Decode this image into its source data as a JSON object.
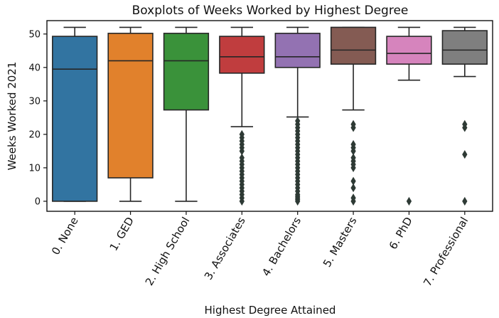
{
  "chart_data": {
    "type": "boxplot",
    "title": "Boxplots of Weeks Worked by Highest Degree",
    "xlabel": "Highest Degree Attained",
    "ylabel": "Weeks Worked 2021",
    "ylim": [
      -3,
      54
    ],
    "yticks": [
      0,
      10,
      20,
      30,
      40,
      50
    ],
    "grid": false,
    "categories": [
      "0. None",
      "1. GED",
      "2. High School",
      "3. Associates",
      "4. Bachelors",
      "5. Masters",
      "6. PhD",
      "7. Professional"
    ],
    "boxes": [
      {
        "whisker_low": 0,
        "q1": 0,
        "median": 39.5,
        "q3": 49.3,
        "whisker_high": 52,
        "outliers": [],
        "color": "#3274a1"
      },
      {
        "whisker_low": 0,
        "q1": 7,
        "median": 42,
        "q3": 50.2,
        "whisker_high": 52,
        "outliers": [],
        "color": "#e1812c"
      },
      {
        "whisker_low": 0,
        "q1": 27.3,
        "median": 42,
        "q3": 50.2,
        "whisker_high": 52,
        "outliers": [],
        "color": "#3a923a"
      },
      {
        "whisker_low": 22.3,
        "q1": 38.3,
        "median": 43.2,
        "q3": 49.3,
        "whisker_high": 52,
        "outliers": [
          0,
          1,
          2,
          3,
          4,
          5,
          6,
          7,
          8,
          9,
          10,
          11,
          12,
          13,
          15,
          16,
          17,
          18,
          19,
          20
        ],
        "color": "#c03d3e"
      },
      {
        "whisker_low": 25.2,
        "q1": 40,
        "median": 43.2,
        "q3": 50.2,
        "whisker_high": 52,
        "outliers": [
          0,
          0.5,
          1,
          1.5,
          2,
          3,
          4,
          5,
          6,
          7,
          8,
          9,
          10,
          11,
          12,
          13,
          14,
          15,
          16,
          17,
          18,
          19,
          20,
          21,
          22,
          23,
          24
        ],
        "color": "#9372b2"
      },
      {
        "whisker_low": 27.3,
        "q1": 41,
        "median": 45.2,
        "q3": 52,
        "whisker_high": 52,
        "outliers": [
          0,
          1,
          4,
          6,
          10,
          11,
          12,
          13,
          15,
          16,
          17,
          22,
          23
        ],
        "color": "#845b53"
      },
      {
        "whisker_low": 36.2,
        "q1": 41,
        "median": 44.2,
        "q3": 49.3,
        "whisker_high": 52,
        "outliers": [
          0
        ],
        "color": "#d684bd"
      },
      {
        "whisker_low": 37.3,
        "q1": 41,
        "median": 45.2,
        "q3": 51,
        "whisker_high": 52,
        "outliers": [
          0,
          14,
          22,
          23
        ],
        "color": "#7f7f7f"
      }
    ]
  }
}
